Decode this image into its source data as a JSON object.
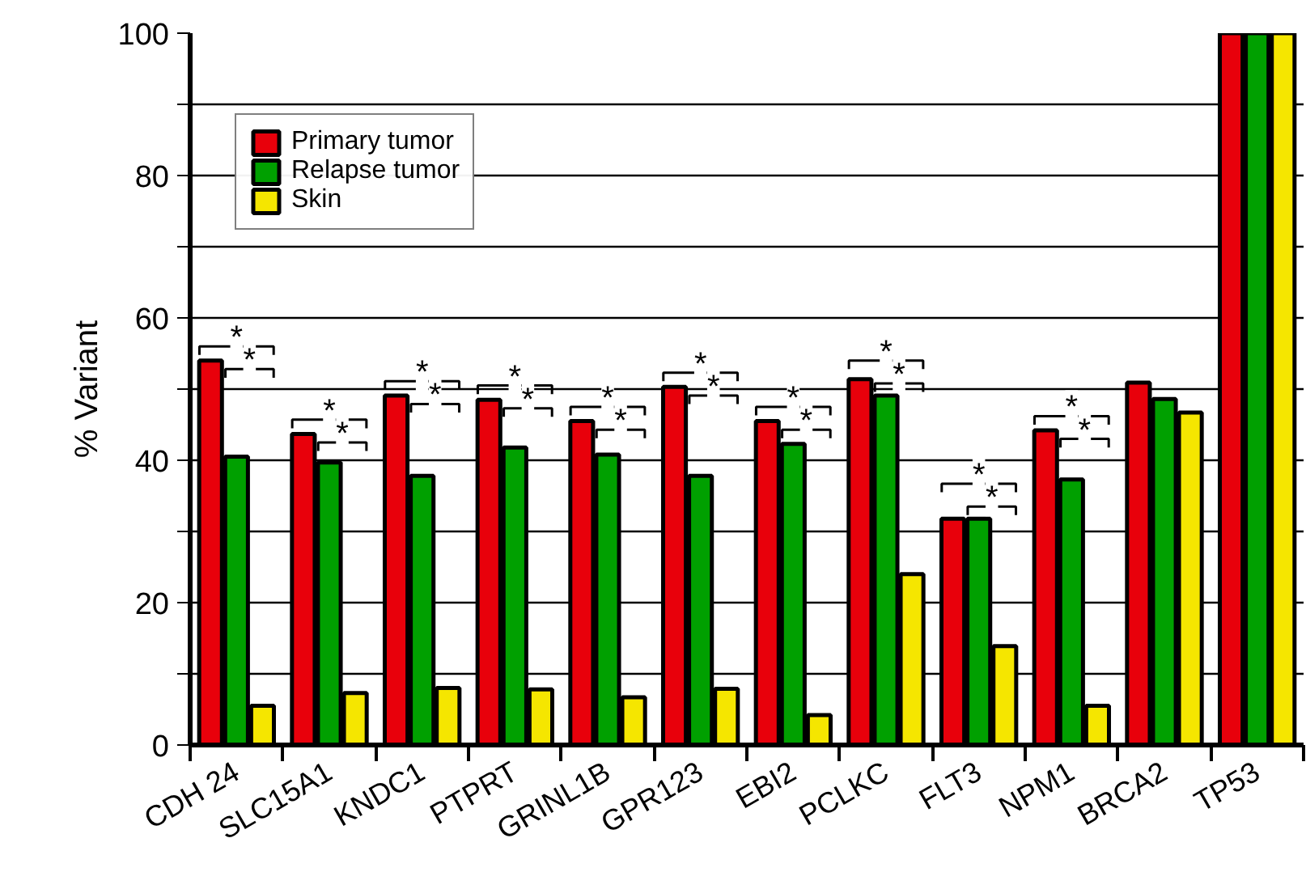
{
  "chart_data": {
    "type": "bar",
    "ylabel": "% Variant",
    "categories": [
      "CDH 24",
      "SLC15A1",
      "KNDC1",
      "PTPRT",
      "GRINL1B",
      "GPR123",
      "EBI2",
      "PCLKC",
      "FLT3",
      "NPM1",
      "BRCA2",
      "TP53"
    ],
    "series": [
      {
        "name": "Primary tumor",
        "color": "#e8000b",
        "values": [
          54,
          43.7,
          49.1,
          48.5,
          45.5,
          50.3,
          45.5,
          51.4,
          31.8,
          44.2,
          50.9,
          100
        ]
      },
      {
        "name": "Relapse tumor",
        "color": "#00a000",
        "values": [
          40.5,
          39.7,
          37.8,
          41.8,
          40.8,
          37.8,
          42.3,
          49.1,
          31.8,
          37.3,
          48.6,
          100
        ]
      },
      {
        "name": "Skin",
        "color": "#f5e600",
        "values": [
          5.5,
          7.3,
          8.0,
          7.8,
          6.7,
          7.9,
          4.2,
          24.0,
          13.9,
          5.5,
          46.7,
          100
        ]
      }
    ],
    "ylim": [
      0,
      100
    ],
    "yticks": [
      0,
      {
        "value": 10,
        "label": null
      },
      20,
      {
        "value": 30,
        "label": null
      },
      40,
      {
        "value": 50,
        "label": null
      },
      60,
      {
        "value": 70,
        "label": null
      },
      80,
      {
        "value": 90,
        "label": null
      },
      100
    ],
    "grid": "y",
    "legend": "top left",
    "annotations": [
      "*",
      "*",
      "*",
      "*",
      "*",
      "*",
      "*",
      "*",
      "*",
      "*",
      "*",
      "*",
      "*",
      "*",
      "*",
      "*",
      "*",
      "*",
      "*",
      "*"
    ]
  }
}
